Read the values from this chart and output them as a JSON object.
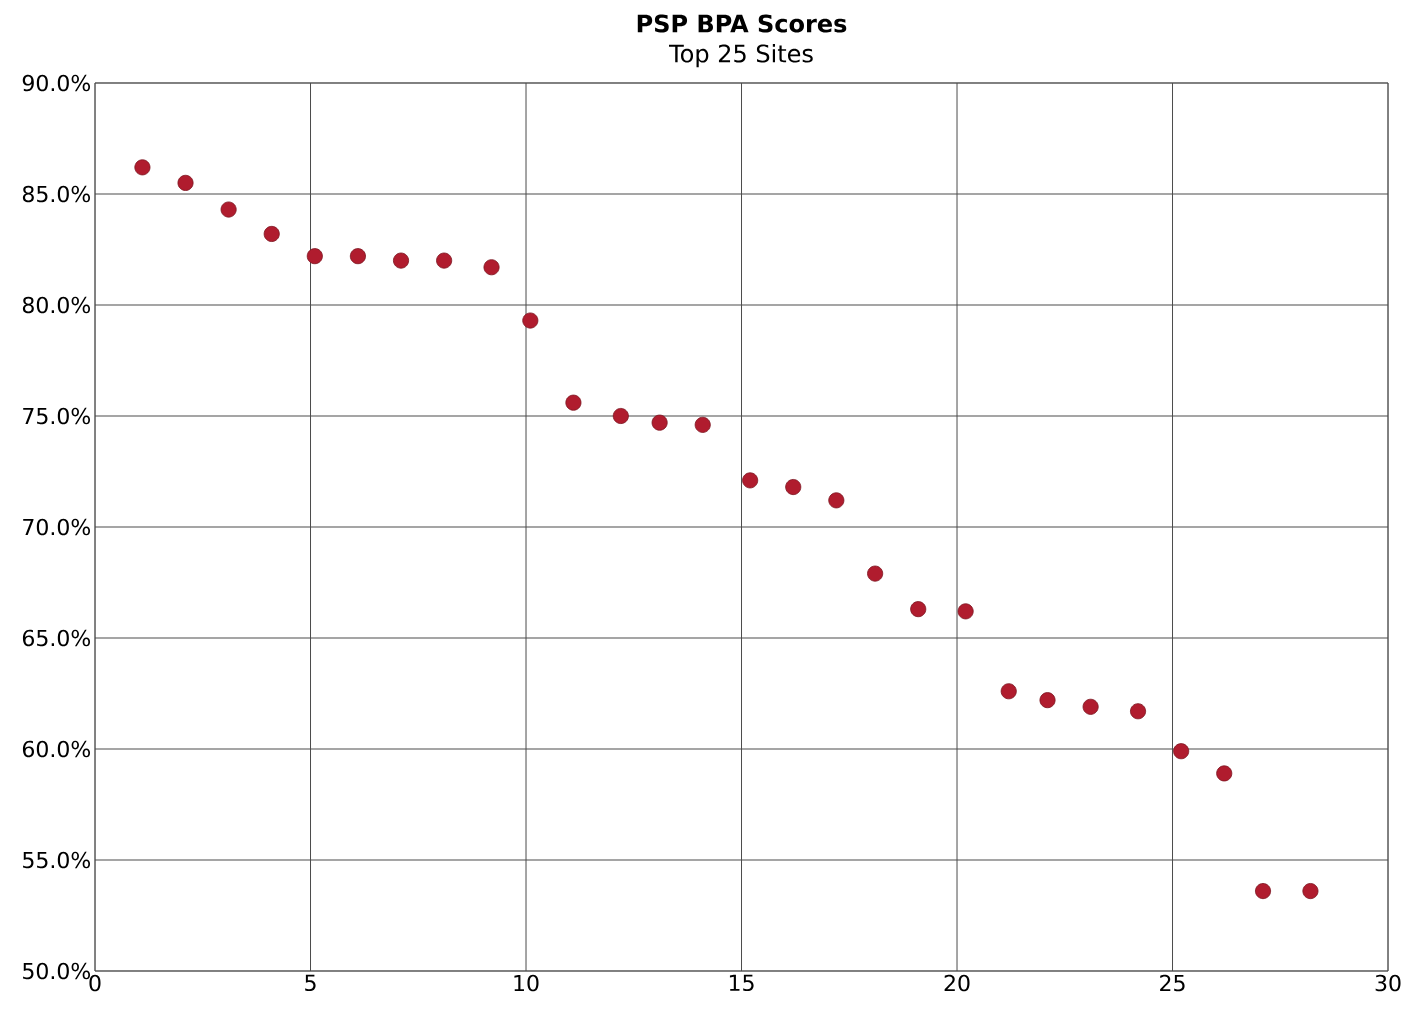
{
  "chart_data": {
    "type": "scatter",
    "title": "PSP BPA Scores",
    "subtitle": "Top 25 Sites",
    "x": [
      1.1,
      2.1,
      3.1,
      4.1,
      5.1,
      6.1,
      7.1,
      8.1,
      9.2,
      10.1,
      11.1,
      12.2,
      13.1,
      14.1,
      15.2,
      16.2,
      17.2,
      18.1,
      19.1,
      20.2,
      21.2,
      22.1,
      23.1,
      24.2,
      25.2,
      26.2,
      27.1,
      28.2
    ],
    "values": [
      86.2,
      85.5,
      84.3,
      83.2,
      82.2,
      82.2,
      82.0,
      82.0,
      81.7,
      79.3,
      75.6,
      75.0,
      74.7,
      74.6,
      72.1,
      71.8,
      71.2,
      67.9,
      66.3,
      66.2,
      62.6,
      62.2,
      61.9,
      61.7,
      59.9,
      58.9,
      53.6,
      53.6
    ],
    "color": "#b01c2e",
    "grid": true,
    "xlim": [
      0,
      30
    ],
    "xticks": [
      0,
      5,
      10,
      15,
      20,
      25,
      30
    ],
    "ylim": [
      50,
      90
    ],
    "yticks": [
      {
        "value": 50,
        "label": "50.0%"
      },
      {
        "value": 55,
        "label": "55.0%"
      },
      {
        "value": 60,
        "label": "60.0%"
      },
      {
        "value": 65,
        "label": "65.0%"
      },
      {
        "value": 70,
        "label": "70.0%"
      },
      {
        "value": 75,
        "label": "75.0%"
      },
      {
        "value": 80,
        "label": "80.0%"
      },
      {
        "value": 85,
        "label": "85.0%"
      },
      {
        "value": 90,
        "label": "90.0%"
      }
    ]
  }
}
